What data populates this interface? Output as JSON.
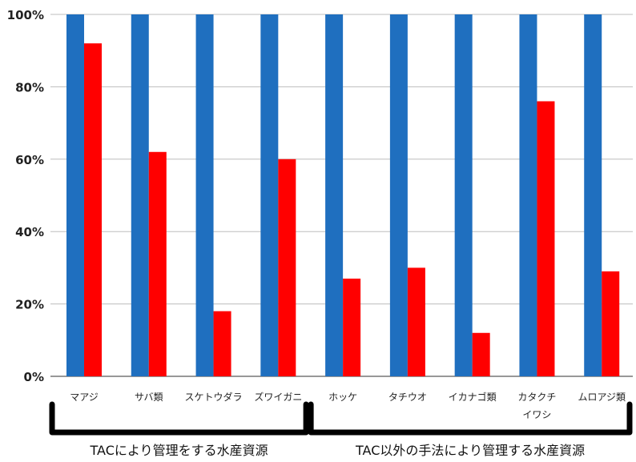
{
  "chart_data": {
    "type": "bar",
    "categories": [
      [
        "マアジ"
      ],
      [
        "サバ類"
      ],
      [
        "スケトウダラ"
      ],
      [
        "ズワイガニ"
      ],
      [
        "ホッケ"
      ],
      [
        "タチウオ"
      ],
      [
        "イカナゴ類"
      ],
      [
        "カタクチ",
        "イワシ"
      ],
      [
        "ムロアジ類"
      ]
    ],
    "series": [
      {
        "values": [
          100,
          100,
          100,
          100,
          100,
          100,
          100,
          100,
          100
        ],
        "color": "#1f6fbf"
      },
      {
        "values": [
          92,
          62,
          18,
          60,
          27,
          30,
          12,
          76,
          29
        ],
        "color": "#ff0000"
      }
    ],
    "ylim": [
      0,
      100
    ],
    "yticks": [
      "0%",
      "20%",
      "40%",
      "60%",
      "80%",
      "100%"
    ],
    "ytick_values": [
      0,
      20,
      40,
      60,
      80,
      100
    ],
    "grid": true,
    "groups": [
      {
        "label": "TACにより管理をする水産資源",
        "start": 0,
        "end": 3
      },
      {
        "label": "TAC以外の手法により管理する水産資源",
        "start": 4,
        "end": 8
      }
    ]
  }
}
